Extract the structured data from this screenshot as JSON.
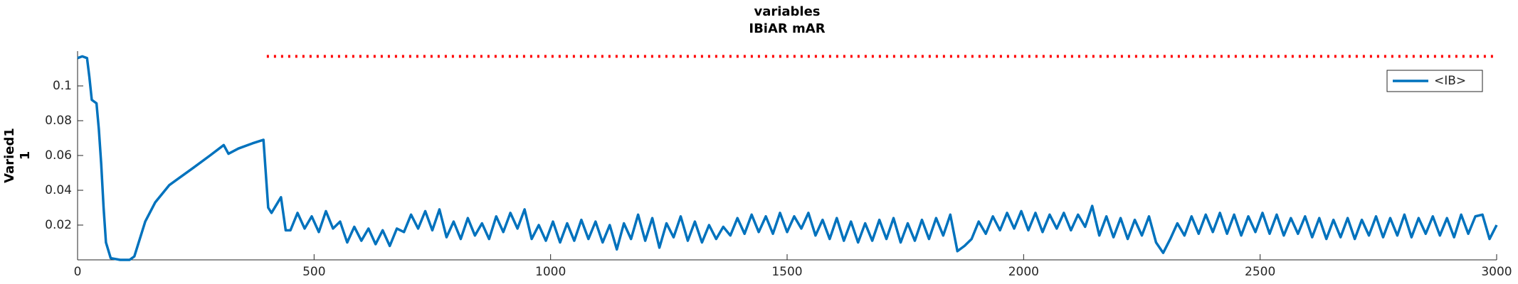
{
  "chart_data": {
    "type": "line",
    "title": [
      "variables",
      "IBiAR mAR"
    ],
    "ylabel": [
      "Varied1",
      "1"
    ],
    "xlim": [
      0,
      3000
    ],
    "xticks": [
      0,
      500,
      1000,
      1500,
      2000,
      2500,
      3000
    ],
    "ylim": [
      0,
      0.12
    ],
    "yticks": [
      0.02,
      0.04,
      0.06,
      0.08,
      0.1
    ],
    "legend": "upper right",
    "series": [
      {
        "name": "<IB>",
        "color": "#0072bd",
        "x": [
          0,
          10,
          20,
          25,
          30,
          40,
          45,
          50,
          55,
          60,
          70,
          90,
          110,
          120,
          143,
          164,
          194,
          245,
          280,
          309,
          319,
          340,
          370,
          393,
          403,
          410,
          430,
          440,
          450,
          465,
          480,
          495,
          510,
          525,
          540,
          555,
          570,
          585,
          600,
          615,
          630,
          645,
          660,
          675,
          690,
          705,
          720,
          735,
          750,
          765,
          780,
          795,
          810,
          825,
          840,
          855,
          870,
          885,
          900,
          915,
          930,
          945,
          960,
          975,
          990,
          1005,
          1020,
          1035,
          1050,
          1065,
          1080,
          1095,
          1110,
          1125,
          1140,
          1155,
          1170,
          1185,
          1200,
          1215,
          1230,
          1245,
          1260,
          1275,
          1290,
          1305,
          1320,
          1335,
          1350,
          1365,
          1380,
          1395,
          1410,
          1425,
          1440,
          1455,
          1470,
          1485,
          1500,
          1515,
          1530,
          1545,
          1560,
          1575,
          1590,
          1605,
          1620,
          1635,
          1650,
          1665,
          1680,
          1695,
          1710,
          1725,
          1740,
          1755,
          1770,
          1785,
          1800,
          1815,
          1830,
          1845,
          1860,
          1875,
          1890,
          1905,
          1920,
          1935,
          1950,
          1965,
          1980,
          1995,
          2010,
          2025,
          2040,
          2055,
          2070,
          2085,
          2100,
          2115,
          2130,
          2145,
          2160,
          2175,
          2190,
          2205,
          2220,
          2235,
          2250,
          2265,
          2280,
          2295,
          2310,
          2325,
          2340,
          2355,
          2370,
          2385,
          2400,
          2415,
          2430,
          2445,
          2460,
          2475,
          2490,
          2505,
          2520,
          2535,
          2550,
          2565,
          2580,
          2595,
          2610,
          2625,
          2640,
          2655,
          2670,
          2685,
          2700,
          2715,
          2730,
          2745,
          2760,
          2775,
          2790,
          2805,
          2820,
          2835,
          2850,
          2865,
          2880,
          2895,
          2910,
          2925,
          2940,
          2955,
          2970,
          2985,
          3000
        ],
        "values": [
          0.116,
          0.117,
          0.116,
          0.105,
          0.092,
          0.09,
          0.075,
          0.055,
          0.03,
          0.01,
          0.001,
          0,
          0,
          0.002,
          0.022,
          0.033,
          0.043,
          0.053,
          0.06,
          0.066,
          0.061,
          0.064,
          0.067,
          0.069,
          0.03,
          0.027,
          0.036,
          0.017,
          0.017,
          0.027,
          0.018,
          0.025,
          0.016,
          0.028,
          0.018,
          0.022,
          0.01,
          0.019,
          0.011,
          0.018,
          0.009,
          0.017,
          0.008,
          0.018,
          0.016,
          0.026,
          0.018,
          0.028,
          0.017,
          0.029,
          0.013,
          0.022,
          0.012,
          0.024,
          0.014,
          0.021,
          0.012,
          0.025,
          0.016,
          0.027,
          0.018,
          0.029,
          0.012,
          0.02,
          0.011,
          0.022,
          0.01,
          0.021,
          0.011,
          0.023,
          0.012,
          0.022,
          0.01,
          0.02,
          0.006,
          0.021,
          0.012,
          0.026,
          0.011,
          0.024,
          0.007,
          0.021,
          0.013,
          0.025,
          0.011,
          0.022,
          0.01,
          0.02,
          0.012,
          0.019,
          0.014,
          0.024,
          0.015,
          0.026,
          0.016,
          0.025,
          0.015,
          0.027,
          0.016,
          0.025,
          0.018,
          0.027,
          0.014,
          0.023,
          0.012,
          0.024,
          0.011,
          0.022,
          0.01,
          0.021,
          0.011,
          0.023,
          0.012,
          0.024,
          0.01,
          0.021,
          0.011,
          0.023,
          0.012,
          0.024,
          0.014,
          0.026,
          0.005,
          0.008,
          0.012,
          0.022,
          0.015,
          0.025,
          0.017,
          0.027,
          0.018,
          0.028,
          0.017,
          0.027,
          0.016,
          0.026,
          0.018,
          0.027,
          0.017,
          0.026,
          0.019,
          0.031,
          0.014,
          0.025,
          0.013,
          0.024,
          0.012,
          0.023,
          0.014,
          0.025,
          0.01,
          0.004,
          0.012,
          0.021,
          0.014,
          0.025,
          0.015,
          0.026,
          0.016,
          0.027,
          0.015,
          0.026,
          0.014,
          0.025,
          0.016,
          0.027,
          0.015,
          0.026,
          0.014,
          0.024,
          0.015,
          0.025,
          0.013,
          0.024,
          0.012,
          0.023,
          0.013,
          0.024,
          0.012,
          0.023,
          0.014,
          0.025,
          0.013,
          0.024,
          0.014,
          0.026,
          0.013,
          0.024,
          0.015,
          0.025,
          0.014,
          0.024,
          0.013,
          0.026,
          0.015,
          0.025,
          0.026,
          0.012,
          0.02
        ]
      },
      {
        "color": "#ff0000",
        "linestyle": "dotted",
        "x": [
          400,
          3000
        ],
        "values": [
          0.117,
          0.117
        ]
      }
    ]
  }
}
